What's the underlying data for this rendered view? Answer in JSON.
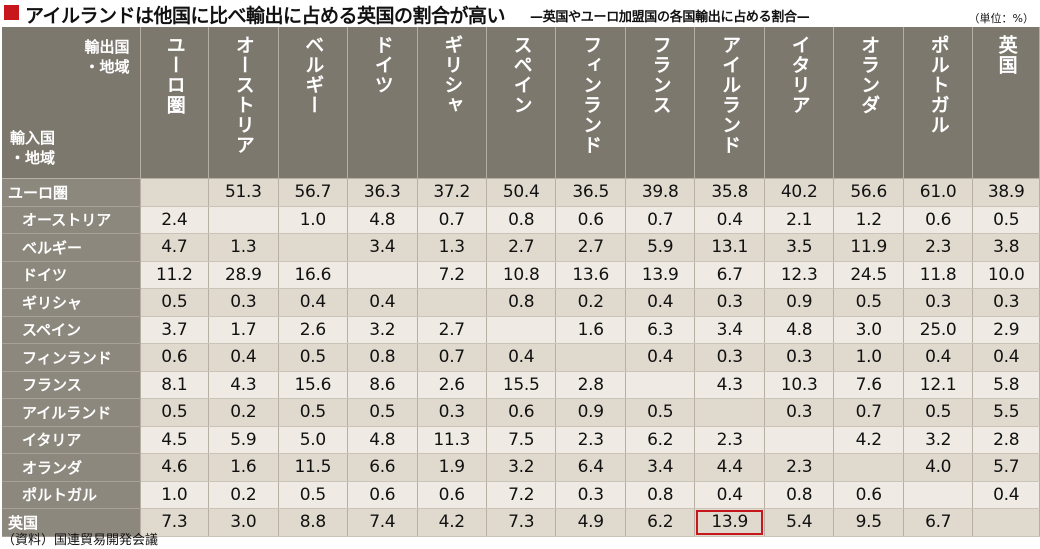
{
  "title": "アイルランドは他国に比べ輸出に占める英国の割合が高い",
  "subtitle": "—英国やユーロ加盟国の各国輸出に占める割合—",
  "unit": "（単位：%）",
  "source": "（資料）国連貿易開発会議",
  "colors": {
    "accent": "#c8161d",
    "header_bg": "#7d786e",
    "row_odd": "#dfd9ce",
    "row_even": "#efebe4"
  },
  "corner": {
    "exporter_line1": "輸出国",
    "exporter_line2": "・地域",
    "importer_line1": "輸入国",
    "importer_line2": "・地域"
  },
  "exporters": [
    "ユーロ圏",
    "オーストリア",
    "ベルギー",
    "ドイツ",
    "ギリシャ",
    "スペイン",
    "フィンランド",
    "フランス",
    "アイルランド",
    "イタリア",
    "オランダ",
    "ポルトガル",
    "英国"
  ],
  "rows": [
    {
      "importer": "ユーロ圏",
      "values": [
        "",
        "51.3",
        "56.7",
        "36.3",
        "37.2",
        "50.4",
        "36.5",
        "39.8",
        "35.8",
        "40.2",
        "56.6",
        "61.0",
        "38.9"
      ]
    },
    {
      "importer": "オーストリア",
      "values": [
        "2.4",
        "",
        "1.0",
        "4.8",
        "0.7",
        "0.8",
        "0.6",
        "0.7",
        "0.4",
        "2.1",
        "1.2",
        "0.6",
        "0.5"
      ]
    },
    {
      "importer": "ベルギー",
      "values": [
        "4.7",
        "1.3",
        "",
        "3.4",
        "1.3",
        "2.7",
        "2.7",
        "5.9",
        "13.1",
        "3.5",
        "11.9",
        "2.3",
        "3.8"
      ]
    },
    {
      "importer": "ドイツ",
      "values": [
        "11.2",
        "28.9",
        "16.6",
        "",
        "7.2",
        "10.8",
        "13.6",
        "13.9",
        "6.7",
        "12.3",
        "24.5",
        "11.8",
        "10.0"
      ]
    },
    {
      "importer": "ギリシャ",
      "values": [
        "0.5",
        "0.3",
        "0.4",
        "0.4",
        "",
        "0.8",
        "0.2",
        "0.4",
        "0.3",
        "0.9",
        "0.5",
        "0.3",
        "0.3"
      ]
    },
    {
      "importer": "スペイン",
      "values": [
        "3.7",
        "1.7",
        "2.6",
        "3.2",
        "2.7",
        "",
        "1.6",
        "6.3",
        "3.4",
        "4.8",
        "3.0",
        "25.0",
        "2.9"
      ]
    },
    {
      "importer": "フィンランド",
      "values": [
        "0.6",
        "0.4",
        "0.5",
        "0.8",
        "0.7",
        "0.4",
        "",
        "0.4",
        "0.3",
        "0.3",
        "1.0",
        "0.4",
        "0.4"
      ]
    },
    {
      "importer": "フランス",
      "values": [
        "8.1",
        "4.3",
        "15.6",
        "8.6",
        "2.6",
        "15.5",
        "2.8",
        "",
        "4.3",
        "10.3",
        "7.6",
        "12.1",
        "5.8"
      ]
    },
    {
      "importer": "アイルランド",
      "values": [
        "0.5",
        "0.2",
        "0.5",
        "0.5",
        "0.3",
        "0.6",
        "0.9",
        "0.5",
        "",
        "0.3",
        "0.7",
        "0.5",
        "5.5"
      ]
    },
    {
      "importer": "イタリア",
      "values": [
        "4.5",
        "5.9",
        "5.0",
        "4.8",
        "11.3",
        "7.5",
        "2.3",
        "6.2",
        "2.3",
        "",
        "4.2",
        "3.2",
        "2.8"
      ]
    },
    {
      "importer": "オランダ",
      "values": [
        "4.6",
        "1.6",
        "11.5",
        "6.6",
        "1.9",
        "3.2",
        "6.4",
        "3.4",
        "4.4",
        "2.3",
        "",
        "4.0",
        "5.7"
      ]
    },
    {
      "importer": "ポルトガル",
      "values": [
        "1.0",
        "0.2",
        "0.5",
        "0.6",
        "0.6",
        "7.2",
        "0.3",
        "0.8",
        "0.4",
        "0.8",
        "0.6",
        "",
        "0.4"
      ]
    },
    {
      "importer": "英国",
      "values": [
        "7.3",
        "3.0",
        "8.8",
        "7.4",
        "4.2",
        "7.3",
        "4.9",
        "6.2",
        "13.9",
        "5.4",
        "9.5",
        "6.7",
        ""
      ]
    }
  ],
  "highlight": {
    "row": 12,
    "col": 8
  }
}
